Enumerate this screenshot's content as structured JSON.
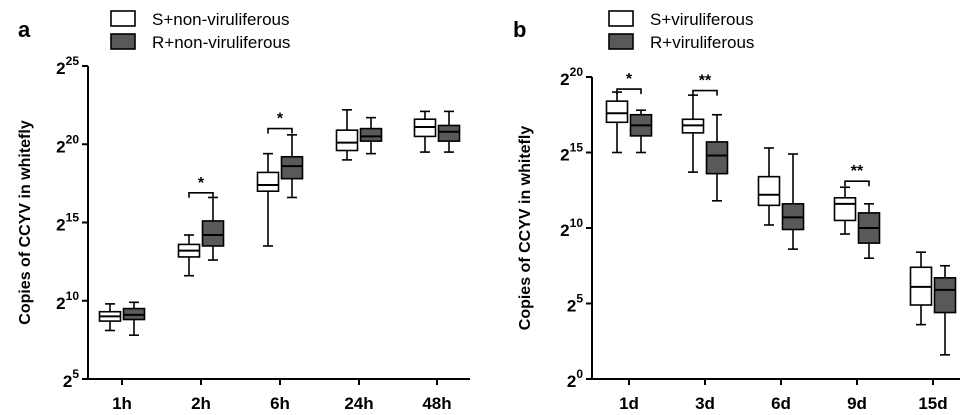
{
  "chart_data": [
    {
      "type": "box",
      "panel_label": "a",
      "ylabel": "Copies of CCYV in whitefly",
      "y_scale": "log2",
      "y_ticks": [
        {
          "exp": 5,
          "base": "2",
          "sup": "5"
        },
        {
          "exp": 10,
          "base": "2",
          "sup": "10"
        },
        {
          "exp": 15,
          "base": "2",
          "sup": "15"
        },
        {
          "exp": 20,
          "base": "2",
          "sup": "20"
        },
        {
          "exp": 25,
          "base": "2",
          "sup": "25"
        }
      ],
      "ylim_exp": [
        5,
        25
      ],
      "categories": [
        "1h",
        "2h",
        "6h",
        "24h",
        "48h"
      ],
      "legend": [
        {
          "label": "S+non-viruliferous",
          "color": "#ffffff"
        },
        {
          "label": "R+non-viruliferous",
          "color": "#595959"
        }
      ],
      "series": [
        {
          "name": "S+non-viruliferous",
          "color": "#ffffff",
          "boxes": [
            {
              "min": 8.1,
              "q1": 8.7,
              "median": 9.0,
              "q3": 9.3,
              "max": 9.8
            },
            {
              "min": 11.6,
              "q1": 12.8,
              "median": 13.2,
              "q3": 13.6,
              "max": 14.2
            },
            {
              "min": 13.5,
              "q1": 17.0,
              "median": 17.4,
              "q3": 18.2,
              "max": 19.4
            },
            {
              "min": 19.0,
              "q1": 19.6,
              "median": 20.1,
              "q3": 20.9,
              "max": 22.2
            },
            {
              "min": 19.5,
              "q1": 20.5,
              "median": 21.1,
              "q3": 21.6,
              "max": 22.1
            }
          ]
        },
        {
          "name": "R+non-viruliferous",
          "color": "#595959",
          "boxes": [
            {
              "min": 7.8,
              "q1": 8.8,
              "median": 9.1,
              "q3": 9.5,
              "max": 9.9
            },
            {
              "min": 12.6,
              "q1": 13.5,
              "median": 14.2,
              "q3": 15.1,
              "max": 16.6
            },
            {
              "min": 16.6,
              "q1": 17.8,
              "median": 18.6,
              "q3": 19.2,
              "max": 20.6
            },
            {
              "min": 19.4,
              "q1": 20.2,
              "median": 20.5,
              "q3": 21.0,
              "max": 21.7
            },
            {
              "min": 19.5,
              "q1": 20.2,
              "median": 20.8,
              "q3": 21.2,
              "max": 22.1
            }
          ]
        }
      ],
      "annotations": [
        {
          "category_index": 1,
          "text": "*",
          "bracket_exp": 16.9
        },
        {
          "category_index": 2,
          "text": "*",
          "bracket_exp": 21.0
        }
      ]
    },
    {
      "type": "box",
      "panel_label": "b",
      "ylabel": "Copies of CCYV in whitefly",
      "y_scale": "log2",
      "y_ticks": [
        {
          "exp": 0,
          "base": "2",
          "sup": "0"
        },
        {
          "exp": 5,
          "base": "2",
          "sup": "5"
        },
        {
          "exp": 10,
          "base": "2",
          "sup": "10"
        },
        {
          "exp": 15,
          "base": "2",
          "sup": "15"
        },
        {
          "exp": 20,
          "base": "2",
          "sup": "20"
        }
      ],
      "ylim_exp": [
        0,
        20
      ],
      "categories": [
        "1d",
        "3d",
        "6d",
        "9d",
        "15d"
      ],
      "legend": [
        {
          "label": "S+viruliferous",
          "color": "#ffffff"
        },
        {
          "label": "R+viruliferous",
          "color": "#595959"
        }
      ],
      "series": [
        {
          "name": "S+viruliferous",
          "color": "#ffffff",
          "boxes": [
            {
              "min": 15.0,
              "q1": 17.0,
              "median": 17.6,
              "q3": 18.4,
              "max": 19.0
            },
            {
              "min": 13.7,
              "q1": 16.3,
              "median": 16.8,
              "q3": 17.2,
              "max": 18.8
            },
            {
              "min": 10.2,
              "q1": 11.5,
              "median": 12.2,
              "q3": 13.4,
              "max": 15.3
            },
            {
              "min": 9.6,
              "q1": 10.5,
              "median": 11.6,
              "q3": 12.0,
              "max": 12.7
            },
            {
              "min": 3.6,
              "q1": 4.9,
              "median": 6.1,
              "q3": 7.4,
              "max": 8.4
            }
          ]
        },
        {
          "name": "R+viruliferous",
          "color": "#595959",
          "boxes": [
            {
              "min": 15.0,
              "q1": 16.1,
              "median": 16.8,
              "q3": 17.5,
              "max": 17.8
            },
            {
              "min": 11.8,
              "q1": 13.6,
              "median": 14.8,
              "q3": 15.7,
              "max": 17.5
            },
            {
              "min": 8.6,
              "q1": 9.9,
              "median": 10.7,
              "q3": 11.6,
              "max": 14.9
            },
            {
              "min": 8.0,
              "q1": 9.0,
              "median": 10.0,
              "q3": 11.0,
              "max": 11.6
            },
            {
              "min": 1.6,
              "q1": 4.4,
              "median": 5.9,
              "q3": 6.7,
              "max": 7.5
            }
          ]
        }
      ],
      "annotations": [
        {
          "category_index": 0,
          "text": "*",
          "bracket_exp": 19.2
        },
        {
          "category_index": 1,
          "text": "**",
          "bracket_exp": 19.1
        },
        {
          "category_index": 3,
          "text": "**",
          "bracket_exp": 13.1
        }
      ]
    }
  ]
}
